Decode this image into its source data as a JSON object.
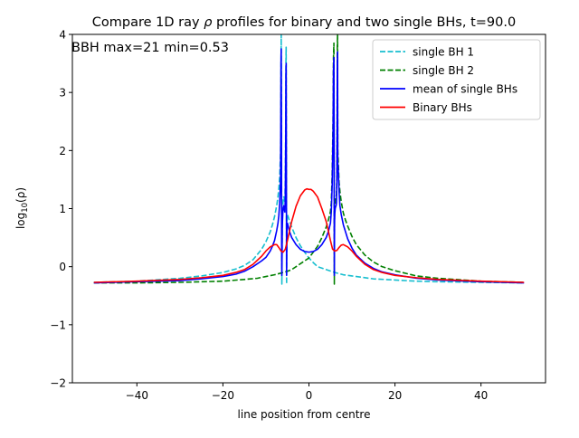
{
  "chart_data": {
    "type": "line",
    "title": "Compare 1D ray ρ profiles for binary and two single BHs, t=90.0",
    "title_parts": {
      "before": "Compare 1D ray ",
      "symbol": "ρ",
      "after": " profiles for binary and two single BHs, t=90.0"
    },
    "annotation": "BBH max=21 min=0.53",
    "xlabel": "line position from centre",
    "ylabel": "log₁₀(ρ)",
    "ylabel_parts": {
      "base": "log",
      "sub": "10",
      "arg": "(ρ)"
    },
    "xlim": [
      -55,
      55
    ],
    "ylim": [
      -2,
      4
    ],
    "xticks": [
      -40,
      -20,
      0,
      20,
      40
    ],
    "xtick_labels": [
      "−40",
      "−20",
      "0",
      "20",
      "40"
    ],
    "yticks": [
      -2,
      -1,
      0,
      1,
      2,
      3,
      4
    ],
    "ytick_labels": [
      "−2",
      "−1",
      "0",
      "1",
      "2",
      "3",
      "4"
    ],
    "grid": false,
    "legend_position": "top-right",
    "series": [
      {
        "name": "single BH 1",
        "color": "#17becf",
        "style": "dashed",
        "x": [
          -50,
          -40,
          -30,
          -25,
          -20,
          -17,
          -15,
          -13,
          -11,
          -10,
          -9,
          -8.5,
          -8,
          -7.5,
          -7.2,
          -7.0,
          -6.8,
          -6.6,
          -6.55,
          -6.5,
          -6.45,
          -6.4,
          -6.35,
          -6.3,
          -6.2,
          -6.1,
          -6.0,
          -5.9,
          -5.8,
          -5.7,
          -5.6,
          -5.5,
          -5.4,
          -5.35,
          -5.3,
          -5.25,
          -5.2,
          -5.1,
          -5.0,
          -4.5,
          -4.0,
          -3.0,
          -2.0,
          -1.0,
          0,
          1,
          2,
          4,
          6,
          8,
          10,
          12,
          15,
          20,
          25,
          30,
          40,
          50
        ],
        "y": [
          -0.27,
          -0.25,
          -0.2,
          -0.16,
          -0.1,
          -0.04,
          0.02,
          0.12,
          0.3,
          0.43,
          0.6,
          0.72,
          0.86,
          1.05,
          1.2,
          1.35,
          1.55,
          1.95,
          2.4,
          3.2,
          4.0,
          3.0,
          1.0,
          -0.3,
          0.7,
          1.0,
          1.15,
          1.2,
          1.2,
          1.15,
          1.1,
          1.5,
          2.5,
          3.5,
          3.78,
          2.0,
          -0.3,
          0.85,
          0.9,
          0.78,
          0.68,
          0.5,
          0.36,
          0.25,
          0.15,
          0.07,
          0.0,
          -0.05,
          -0.1,
          -0.14,
          -0.16,
          -0.18,
          -0.21,
          -0.23,
          -0.25,
          -0.26,
          -0.27,
          -0.28
        ]
      },
      {
        "name": "single BH 2",
        "color": "#008000",
        "style": "dashed",
        "x": [
          -50,
          -40,
          -30,
          -25,
          -20,
          -15,
          -12,
          -10,
          -8,
          -6,
          -5,
          -4,
          -2,
          0,
          1,
          2,
          3,
          4,
          4.5,
          5,
          5.2,
          5.4,
          5.6,
          5.7,
          5.8,
          5.85,
          5.9,
          5.95,
          6.0,
          6.1,
          6.2,
          6.3,
          6.4,
          6.5,
          6.55,
          6.6,
          6.65,
          6.7,
          6.8,
          7.0,
          7.2,
          7.5,
          8,
          8.5,
          9,
          10,
          11,
          13,
          15,
          17,
          20,
          25,
          30,
          40,
          50
        ],
        "y": [
          -0.28,
          -0.28,
          -0.27,
          -0.26,
          -0.25,
          -0.22,
          -0.2,
          -0.17,
          -0.14,
          -0.1,
          -0.08,
          -0.05,
          0.05,
          0.15,
          0.25,
          0.35,
          0.5,
          0.68,
          0.8,
          0.95,
          1.1,
          1.6,
          2.5,
          3.6,
          3.85,
          2.0,
          -0.3,
          0.9,
          1.0,
          1.15,
          1.18,
          1.2,
          1.25,
          1.6,
          2.6,
          3.8,
          4.0,
          2.0,
          1.85,
          1.45,
          1.3,
          1.12,
          0.92,
          0.8,
          0.7,
          0.52,
          0.38,
          0.2,
          0.08,
          0.0,
          -0.07,
          -0.16,
          -0.2,
          -0.25,
          -0.27
        ]
      },
      {
        "name": "mean of single BHs",
        "color": "#0000ff",
        "style": "solid",
        "x": [
          -50,
          -40,
          -30,
          -25,
          -20,
          -17,
          -15,
          -13,
          -11,
          -10,
          -9,
          -8.5,
          -8,
          -7.5,
          -7.2,
          -7.0,
          -6.8,
          -6.6,
          -6.55,
          -6.5,
          -6.45,
          -6.4,
          -6.35,
          -6.3,
          -6.2,
          -6.1,
          -6.0,
          -5.9,
          -5.8,
          -5.7,
          -5.6,
          -5.5,
          -5.4,
          -5.35,
          -5.3,
          -5.25,
          -5.2,
          -5.1,
          -5.0,
          -4.5,
          -4.0,
          -3.0,
          -2.0,
          -1.0,
          0,
          1,
          2,
          3,
          4,
          4.5,
          5,
          5.2,
          5.4,
          5.6,
          5.7,
          5.8,
          5.85,
          5.9,
          5.95,
          6.0,
          6.1,
          6.2,
          6.3,
          6.4,
          6.5,
          6.55,
          6.6,
          6.65,
          6.7,
          6.8,
          7.0,
          7.2,
          7.5,
          8,
          8.5,
          9,
          10,
          11,
          13,
          15,
          17,
          20,
          25,
          30,
          40,
          50
        ],
        "y": [
          -0.28,
          -0.26,
          -0.24,
          -0.21,
          -0.17,
          -0.13,
          -0.08,
          0.0,
          0.1,
          0.16,
          0.27,
          0.35,
          0.45,
          0.62,
          0.75,
          0.88,
          1.1,
          1.5,
          2.4,
          3.5,
          3.75,
          2.5,
          0.5,
          -0.15,
          0.7,
          0.9,
          1.0,
          1.05,
          1.02,
          0.98,
          0.94,
          1.2,
          2.2,
          3.3,
          3.5,
          1.8,
          -0.15,
          0.72,
          0.75,
          0.6,
          0.5,
          0.38,
          0.3,
          0.26,
          0.25,
          0.26,
          0.3,
          0.38,
          0.5,
          0.6,
          0.75,
          0.95,
          1.4,
          2.3,
          3.4,
          3.6,
          1.8,
          -0.15,
          0.75,
          0.9,
          1.0,
          1.03,
          1.05,
          1.1,
          1.5,
          2.4,
          3.5,
          3.7,
          1.8,
          1.7,
          1.3,
          1.05,
          0.9,
          0.72,
          0.6,
          0.48,
          0.32,
          0.2,
          0.06,
          -0.03,
          -0.09,
          -0.14,
          -0.2,
          -0.23,
          -0.26,
          -0.28
        ]
      },
      {
        "name": "Binary BHs",
        "color": "#ff0000",
        "style": "solid",
        "x": [
          -50,
          -40,
          -30,
          -25,
          -20,
          -17,
          -15,
          -13,
          -11,
          -10,
          -9,
          -8,
          -7.5,
          -7,
          -6.5,
          -6,
          -5.5,
          -5,
          -4.5,
          -4,
          -3,
          -2,
          -1,
          -0.5,
          0,
          0.5,
          1,
          2,
          3,
          4,
          4.5,
          5,
          5.5,
          6,
          6.5,
          7,
          7.5,
          8,
          9,
          10,
          11,
          13,
          15,
          17,
          20,
          25,
          30,
          40,
          50
        ],
        "y": [
          -0.27,
          -0.25,
          -0.22,
          -0.19,
          -0.15,
          -0.1,
          -0.05,
          0.04,
          0.18,
          0.27,
          0.34,
          0.38,
          0.38,
          0.33,
          0.27,
          0.25,
          0.3,
          0.45,
          0.62,
          0.78,
          1.04,
          1.22,
          1.32,
          1.34,
          1.33,
          1.33,
          1.3,
          1.2,
          1.0,
          0.78,
          0.62,
          0.45,
          0.3,
          0.27,
          0.28,
          0.33,
          0.37,
          0.38,
          0.34,
          0.27,
          0.18,
          0.04,
          -0.05,
          -0.1,
          -0.15,
          -0.19,
          -0.22,
          -0.25,
          -0.27
        ]
      }
    ]
  }
}
